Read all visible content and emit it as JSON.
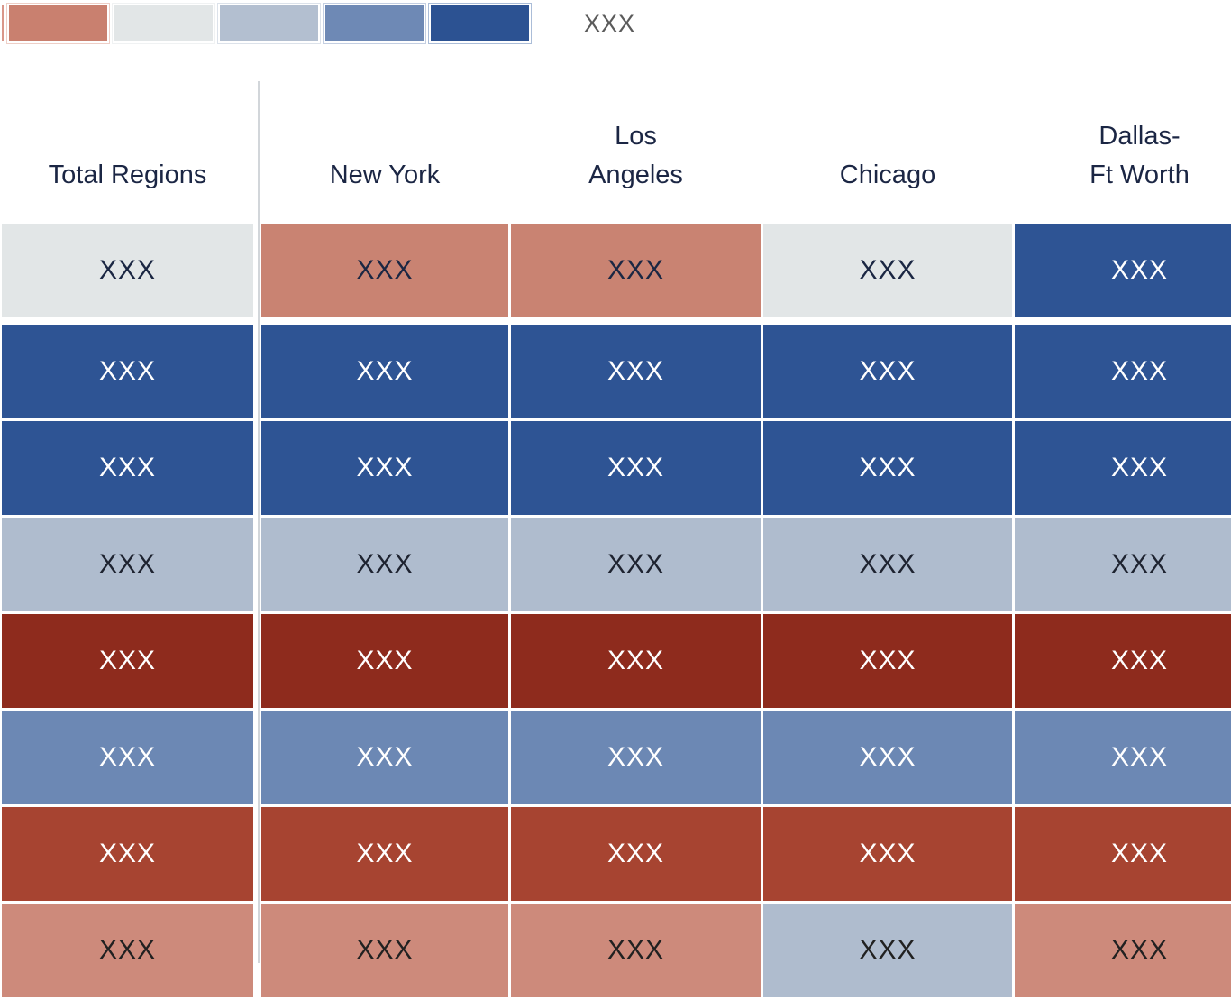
{
  "colors": {
    "background": "#FFFFFF",
    "header_text": "#1B2644",
    "legend_label_text": "#5B5B5B",
    "divider": "#D2D6DA"
  },
  "legend": {
    "label": "XXX",
    "partial_swatch": {
      "name": "cut-off-swatch",
      "color": "#D9978A"
    },
    "swatches": [
      {
        "name": "salmon",
        "color": "#C9806F",
        "ring": "#EECFC7"
      },
      {
        "name": "light-gray",
        "color": "#E2E6E7",
        "ring": "#F0F2F3"
      },
      {
        "name": "blue-gray",
        "color": "#B3BFD0",
        "ring": "#DCE2EA"
      },
      {
        "name": "medium-blue",
        "color": "#6E89B5",
        "ring": "#C4CFE2"
      },
      {
        "name": "dark-blue",
        "color": "#2C5292",
        "ring": "#ABBDD8"
      }
    ]
  },
  "table": {
    "cell_text": "XXX",
    "columns": [
      {
        "label": "Total Regions"
      },
      {
        "label": "New York"
      },
      {
        "label": "Los\nAngeles"
      },
      {
        "label": "Chicago"
      },
      {
        "label": "Dallas-\nFt Worth"
      }
    ],
    "rows": [
      {
        "cells": [
          {
            "bg": "#E2E6E7",
            "fg": "#1B2743"
          },
          {
            "bg": "#C98372",
            "fg": "#1B2743"
          },
          {
            "bg": "#C98372",
            "fg": "#1B2743"
          },
          {
            "bg": "#E2E6E7",
            "fg": "#1B2743"
          },
          {
            "bg": "#2E5494",
            "fg": "#FFFFFF"
          }
        ]
      },
      {
        "cells": [
          {
            "bg": "#2E5494",
            "fg": "#FFFFFF"
          },
          {
            "bg": "#2E5494",
            "fg": "#FFFFFF"
          },
          {
            "bg": "#2E5494",
            "fg": "#FFFFFF"
          },
          {
            "bg": "#2E5494",
            "fg": "#FFFFFF"
          },
          {
            "bg": "#2E5494",
            "fg": "#FFFFFF"
          }
        ]
      },
      {
        "cells": [
          {
            "bg": "#2E5494",
            "fg": "#FFFFFF"
          },
          {
            "bg": "#2E5494",
            "fg": "#FFFFFF"
          },
          {
            "bg": "#2E5494",
            "fg": "#FFFFFF"
          },
          {
            "bg": "#2E5494",
            "fg": "#FFFFFF"
          },
          {
            "bg": "#2E5494",
            "fg": "#FFFFFF"
          }
        ]
      },
      {
        "cells": [
          {
            "bg": "#AFBCCE",
            "fg": "#1E2330"
          },
          {
            "bg": "#AFBCCE",
            "fg": "#1E2330"
          },
          {
            "bg": "#AFBCCE",
            "fg": "#1E2330"
          },
          {
            "bg": "#AFBCCE",
            "fg": "#1E2330"
          },
          {
            "bg": "#AFBCCE",
            "fg": "#1E2330"
          }
        ]
      },
      {
        "cells": [
          {
            "bg": "#8E2B1D",
            "fg": "#FFFFFF"
          },
          {
            "bg": "#8E2B1D",
            "fg": "#FFFFFF"
          },
          {
            "bg": "#8E2B1D",
            "fg": "#FFFFFF"
          },
          {
            "bg": "#8E2B1D",
            "fg": "#FFFFFF"
          },
          {
            "bg": "#8E2B1D",
            "fg": "#FFFFFF"
          }
        ]
      },
      {
        "cells": [
          {
            "bg": "#6C88B4",
            "fg": "#FFFFFF"
          },
          {
            "bg": "#6C88B4",
            "fg": "#FFFFFF"
          },
          {
            "bg": "#6C88B4",
            "fg": "#FFFFFF"
          },
          {
            "bg": "#6C88B4",
            "fg": "#FFFFFF"
          },
          {
            "bg": "#6C88B4",
            "fg": "#FFFFFF"
          }
        ]
      },
      {
        "cells": [
          {
            "bg": "#A74431",
            "fg": "#FFFFFF"
          },
          {
            "bg": "#A74431",
            "fg": "#FFFFFF"
          },
          {
            "bg": "#A74431",
            "fg": "#FFFFFF"
          },
          {
            "bg": "#A74431",
            "fg": "#FFFFFF"
          },
          {
            "bg": "#A74431",
            "fg": "#FFFFFF"
          }
        ]
      },
      {
        "cells": [
          {
            "bg": "#CD8A7B",
            "fg": "#212121"
          },
          {
            "bg": "#CD8A7B",
            "fg": "#212121"
          },
          {
            "bg": "#CD8A7B",
            "fg": "#212121"
          },
          {
            "bg": "#AFBCCE",
            "fg": "#212121"
          },
          {
            "bg": "#CD8A7B",
            "fg": "#212121"
          }
        ]
      }
    ]
  }
}
